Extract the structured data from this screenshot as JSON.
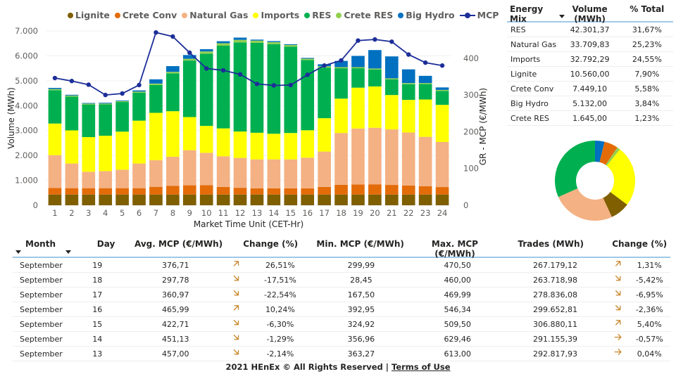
{
  "chart_data": {
    "type": "bar",
    "subtype": "stacked-bar-with-line",
    "xlabel": "Market Time Unit (CET-Hr)",
    "ylabel": "Volume (MWh)",
    "y2label": "GR - MCP (€/MWh)",
    "ylim": [
      0,
      7000
    ],
    "y2lim": [
      0,
      470
    ],
    "yticks": [
      "0",
      "1.000",
      "2.000",
      "3.000",
      "4.000",
      "5.000",
      "6.000",
      "7.000"
    ],
    "yticks_values": [
      0,
      1000,
      2000,
      3000,
      4000,
      5000,
      6000,
      7000
    ],
    "y2ticks": [
      "0",
      "100",
      "200",
      "300",
      "400"
    ],
    "y2ticks_values": [
      0,
      100,
      200,
      300,
      400
    ],
    "grid": true,
    "legend_position": "top",
    "categories": [
      "1",
      "2",
      "3",
      "4",
      "5",
      "6",
      "7",
      "8",
      "9",
      "10",
      "11",
      "12",
      "13",
      "14",
      "15",
      "16",
      "17",
      "18",
      "19",
      "20",
      "21",
      "22",
      "23",
      "24"
    ],
    "series": [
      {
        "name": "Lignite",
        "color": "#7f5f00",
        "values": [
          432,
          432,
          432,
          432,
          432,
          432,
          432,
          432,
          432,
          432,
          432,
          432,
          432,
          432,
          432,
          432,
          432,
          432,
          432,
          432,
          432,
          432,
          432,
          432
        ]
      },
      {
        "name": "Crete Conv",
        "color": "#e36c09",
        "values": [
          265,
          255,
          255,
          255,
          255,
          255,
          310,
          345,
          370,
          375,
          305,
          270,
          250,
          250,
          250,
          250,
          305,
          390,
          400,
          410,
          385,
          360,
          335,
          300
        ]
      },
      {
        "name": "Natural Gas",
        "color": "#f4b183",
        "values": [
          1315,
          990,
          660,
          685,
          740,
          990,
          1070,
          1170,
          1410,
          1300,
          1230,
          1200,
          1160,
          1160,
          1160,
          1230,
          1420,
          2080,
          2250,
          2270,
          2230,
          2130,
          1980,
          1810
        ]
      },
      {
        "name": "Imports",
        "color": "#ffff00",
        "values": [
          1270,
          1330,
          1390,
          1420,
          1530,
          1720,
          1900,
          1830,
          1330,
          1080,
          1120,
          1060,
          1070,
          1030,
          1060,
          1100,
          1340,
          1380,
          1640,
          1660,
          1380,
          1310,
          1500,
          1490
        ]
      },
      {
        "name": "RES",
        "color": "#00b050",
        "values": [
          1340,
          1360,
          1310,
          1260,
          1190,
          1120,
          1120,
          1520,
          2270,
          2900,
          3320,
          3580,
          3610,
          3600,
          3470,
          2820,
          2030,
          1220,
          780,
          680,
          630,
          630,
          620,
          560
        ]
      },
      {
        "name": "Crete RES",
        "color": "#92d050",
        "values": [
          45,
          40,
          35,
          35,
          35,
          45,
          55,
          60,
          70,
          90,
          100,
          100,
          90,
          80,
          65,
          55,
          55,
          45,
          45,
          40,
          40,
          45,
          40,
          40
        ]
      },
      {
        "name": "Big Hydro",
        "color": "#0070c0",
        "values": [
          46,
          30,
          25,
          30,
          25,
          50,
          170,
          230,
          150,
          90,
          80,
          90,
          40,
          40,
          30,
          30,
          80,
          250,
          450,
          740,
          880,
          550,
          290,
          100
        ]
      }
    ],
    "line_series": {
      "name": "MCP",
      "color": "#1d2e99",
      "axis": "right",
      "values": [
        346,
        338,
        328,
        300,
        304,
        327,
        470,
        459,
        415,
        372,
        367,
        356,
        330,
        326,
        327,
        355,
        380,
        394,
        448,
        451,
        445,
        410,
        388,
        380
      ]
    }
  },
  "legend": [
    {
      "label": "Lignite",
      "color": "#7f5f00",
      "type": "dot"
    },
    {
      "label": "Crete Conv",
      "color": "#e36c09",
      "type": "dot"
    },
    {
      "label": "Natural Gas",
      "color": "#f4b183",
      "type": "dot"
    },
    {
      "label": "Imports",
      "color": "#ffff00",
      "type": "dot"
    },
    {
      "label": "RES",
      "color": "#00b050",
      "type": "dot"
    },
    {
      "label": "Crete RES",
      "color": "#92d050",
      "type": "dot"
    },
    {
      "label": "Big Hydro",
      "color": "#0070c0",
      "type": "dot"
    },
    {
      "label": "MCP",
      "color": "#1d2e99",
      "type": "line"
    }
  ],
  "energy_mix": {
    "headers": {
      "name": "Energy Mix",
      "volume": "Volume (MWh)",
      "pct": "% Total"
    },
    "rows": [
      {
        "name": "RES",
        "volume": "42.301,37",
        "pct": "31,67%"
      },
      {
        "name": "Natural Gas",
        "volume": "33.709,83",
        "pct": "25,23%"
      },
      {
        "name": "Imports",
        "volume": "32.792,29",
        "pct": "24,55%"
      },
      {
        "name": "Lignite",
        "volume": "10.560,00",
        "pct": "7,90%"
      },
      {
        "name": "Crete Conv",
        "volume": "7.449,10",
        "pct": "5,58%"
      },
      {
        "name": "Big Hydro",
        "volume": "5.132,00",
        "pct": "3,84%"
      },
      {
        "name": "Crete RES",
        "volume": "1.645,00",
        "pct": "1,23%"
      }
    ]
  },
  "donut": {
    "type": "pie",
    "slices": [
      {
        "label": "Big Hydro",
        "value": 3.84,
        "color": "#0070c0"
      },
      {
        "label": "Crete Conv",
        "value": 5.58,
        "color": "#e36c09"
      },
      {
        "label": "Crete RES",
        "value": 1.23,
        "color": "#92d050"
      },
      {
        "label": "Imports",
        "value": 24.55,
        "color": "#ffff00"
      },
      {
        "label": "Lignite",
        "value": 7.9,
        "color": "#7f5f00"
      },
      {
        "label": "Natural Gas",
        "value": 25.23,
        "color": "#f4b183"
      },
      {
        "label": "RES",
        "value": 31.67,
        "color": "#00b050"
      }
    ]
  },
  "daily": {
    "headers": {
      "month": "Month",
      "day": "Day",
      "avg": "Avg. MCP (€/MWh)",
      "chg1": "Change (%)",
      "min": "Min. MCP (€/MWh)",
      "max": "Max. MCP (€/MWh)",
      "trades": "Trades (MWh)",
      "chg2": "Change (%)"
    },
    "arrow_color": "#c8862a",
    "rows": [
      {
        "month": "September",
        "day": "19",
        "avg": "376,71",
        "arrow1": "up-right",
        "chg1": "26,51%",
        "min": "299,99",
        "max": "470,50",
        "trades": "267.179,12",
        "arrow2": "up-right",
        "chg2": "1,31%"
      },
      {
        "month": "September",
        "day": "18",
        "avg": "297,78",
        "arrow1": "down-right",
        "chg1": "-17,51%",
        "min": "28,45",
        "max": "460,00",
        "trades": "263.718,98",
        "arrow2": "down-right",
        "chg2": "-5,42%"
      },
      {
        "month": "September",
        "day": "17",
        "avg": "360,97",
        "arrow1": "down-right",
        "chg1": "-22,54%",
        "min": "167,50",
        "max": "469,99",
        "trades": "278.836,08",
        "arrow2": "down-right",
        "chg2": "-6,95%"
      },
      {
        "month": "September",
        "day": "16",
        "avg": "465,99",
        "arrow1": "up-right",
        "chg1": "10,24%",
        "min": "392,95",
        "max": "546,34",
        "trades": "299.652,81",
        "arrow2": "down-right",
        "chg2": "-2,36%"
      },
      {
        "month": "September",
        "day": "15",
        "avg": "422,71",
        "arrow1": "down-right",
        "chg1": "-6,30%",
        "min": "324,92",
        "max": "509,50",
        "trades": "306.880,11",
        "arrow2": "up-right",
        "chg2": "5,40%"
      },
      {
        "month": "September",
        "day": "14",
        "avg": "451,13",
        "arrow1": "down-right",
        "chg1": "-1,29%",
        "min": "356,96",
        "max": "629,46",
        "trades": "291.155,39",
        "arrow2": "right",
        "chg2": "-0,57%"
      },
      {
        "month": "September",
        "day": "13",
        "avg": "457,00",
        "arrow1": "down-right",
        "chg1": "-2,14%",
        "min": "363,27",
        "max": "613,00",
        "trades": "292.817,93",
        "arrow2": "right",
        "chg2": "0,04%"
      }
    ]
  },
  "icons": {
    "up-right": "🡥",
    "down-right": "🡦",
    "right": "🡢"
  },
  "footer": {
    "text": "2021 HEnEx © All Rights Reserved | ",
    "link": "Terms of Use"
  }
}
